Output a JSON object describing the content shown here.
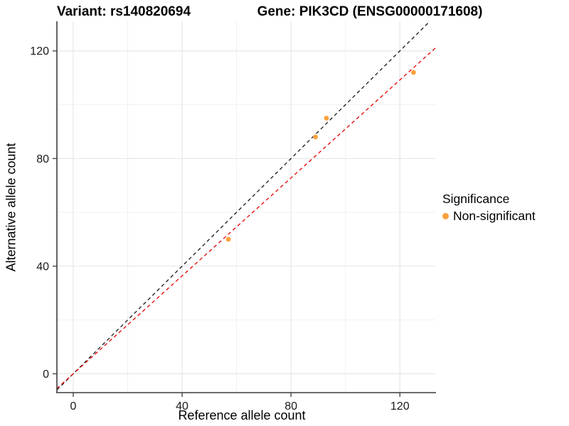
{
  "titles": {
    "variant": "Variant: rs140820694",
    "gene": "Gene: PIK3CD (ENSG00000171608)"
  },
  "axes": {
    "x": {
      "label": "Reference allele count",
      "ticks": [
        0,
        40,
        80,
        120
      ],
      "minor_ticks": [
        20,
        60,
        100
      ]
    },
    "y": {
      "label": "Alternative allele count",
      "ticks": [
        0,
        40,
        80,
        120
      ],
      "minor_ticks": [
        20,
        60,
        100
      ]
    }
  },
  "legend": {
    "title": "Significance",
    "items": [
      {
        "label": "Non-significant",
        "color": "#FAA23C"
      }
    ]
  },
  "chart_data": {
    "type": "scatter",
    "xlabel": "Reference allele count",
    "ylabel": "Alternative allele count",
    "xlim": [
      -6,
      133
    ],
    "ylim": [
      -7,
      131
    ],
    "grid": true,
    "legend_position": "right",
    "series": [
      {
        "name": "Non-significant",
        "color": "#FAA23C",
        "points": [
          [
            57,
            50
          ],
          [
            89,
            88
          ],
          [
            93,
            95
          ],
          [
            125,
            112
          ]
        ]
      }
    ],
    "reference_lines": [
      {
        "name": "identity",
        "slope": 1.0,
        "intercept": 0,
        "color": "#1A1A1A",
        "style": "dashed"
      },
      {
        "name": "fit",
        "slope": 0.91,
        "intercept": 0,
        "color": "#E60000",
        "style": "dashed"
      }
    ]
  },
  "colors": {
    "grid_major": "#E4E4E4",
    "grid_minor": "#F1F1F1",
    "axis_line": "#3C3C3C",
    "tick_label": "#1A1A1A",
    "point": "#FAA23C"
  }
}
